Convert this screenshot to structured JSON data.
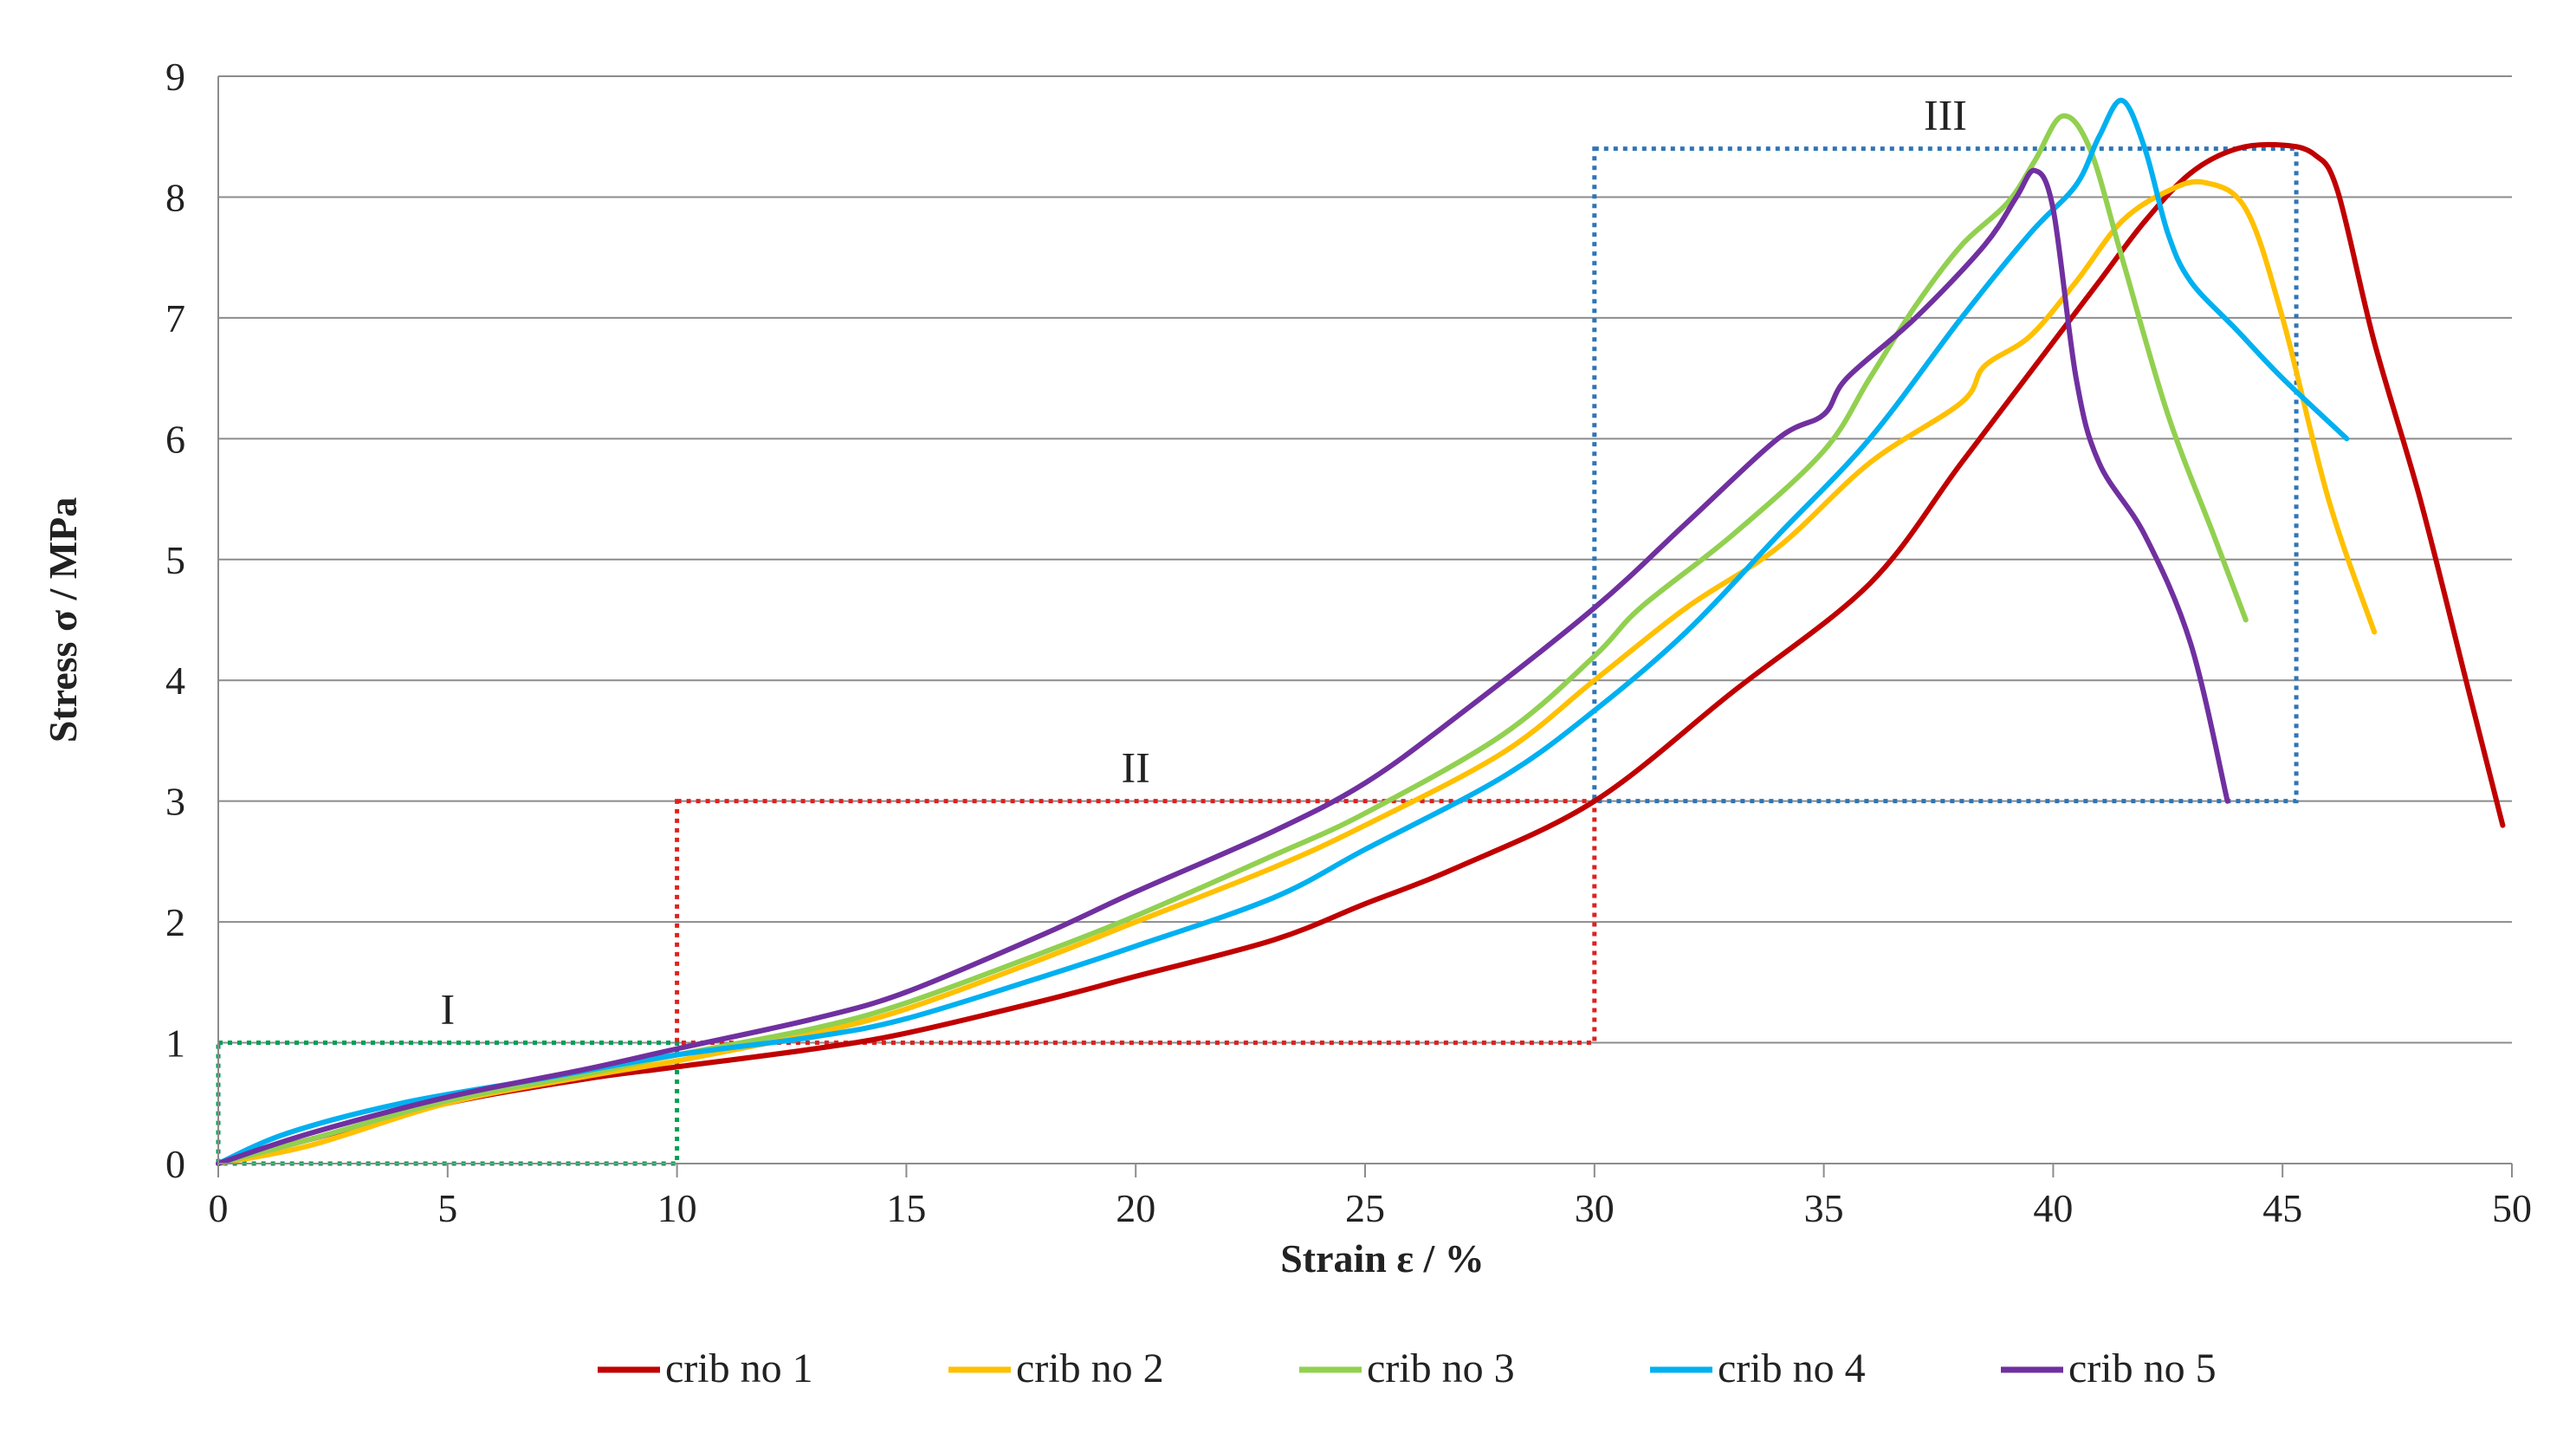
{
  "chart_data": {
    "type": "line",
    "title": "",
    "xlabel": "Strain ε / %",
    "ylabel": "Stress σ / MPa",
    "xlim": [
      0,
      50
    ],
    "ylim": [
      0,
      9
    ],
    "xticks": [
      0,
      5,
      10,
      15,
      20,
      25,
      30,
      35,
      40,
      45,
      50
    ],
    "yticks": [
      0,
      1,
      2,
      3,
      4,
      5,
      6,
      7,
      8,
      9
    ],
    "grid": "horizontal",
    "legend_position": "bottom",
    "series": [
      {
        "name": "crib no 1",
        "color": "#C00000",
        "points": [
          [
            0,
            0
          ],
          [
            2,
            0.2
          ],
          [
            5,
            0.5
          ],
          [
            8,
            0.7
          ],
          [
            10,
            0.8
          ],
          [
            13,
            0.95
          ],
          [
            15,
            1.08
          ],
          [
            18,
            1.35
          ],
          [
            20,
            1.55
          ],
          [
            23,
            1.85
          ],
          [
            25,
            2.15
          ],
          [
            27,
            2.45
          ],
          [
            30,
            3.0
          ],
          [
            33,
            3.9
          ],
          [
            36,
            4.8
          ],
          [
            38,
            5.8
          ],
          [
            40,
            6.8
          ],
          [
            41,
            7.3
          ],
          [
            42,
            7.8
          ],
          [
            43,
            8.2
          ],
          [
            44,
            8.4
          ],
          [
            45,
            8.43
          ],
          [
            45.7,
            8.35
          ],
          [
            46.2,
            8.05
          ],
          [
            47,
            6.8
          ],
          [
            48,
            5.5
          ],
          [
            49,
            4.0
          ],
          [
            49.8,
            2.8
          ]
        ]
      },
      {
        "name": "crib no 2",
        "color": "#FFC000",
        "points": [
          [
            0,
            0
          ],
          [
            2,
            0.15
          ],
          [
            5,
            0.5
          ],
          [
            8,
            0.72
          ],
          [
            10,
            0.85
          ],
          [
            13,
            1.08
          ],
          [
            15,
            1.28
          ],
          [
            18,
            1.7
          ],
          [
            20,
            2.0
          ],
          [
            23,
            2.45
          ],
          [
            25,
            2.8
          ],
          [
            28,
            3.4
          ],
          [
            30,
            4.0
          ],
          [
            32,
            4.6
          ],
          [
            34,
            5.1
          ],
          [
            36,
            5.8
          ],
          [
            38,
            6.3
          ],
          [
            38.5,
            6.6
          ],
          [
            39.5,
            6.85
          ],
          [
            40.5,
            7.3
          ],
          [
            41.5,
            7.8
          ],
          [
            42.5,
            8.05
          ],
          [
            43.3,
            8.12
          ],
          [
            44.2,
            7.9
          ],
          [
            45,
            7.0
          ],
          [
            46,
            5.5
          ],
          [
            47,
            4.4
          ]
        ]
      },
      {
        "name": "crib no 3",
        "color": "#92D050",
        "points": [
          [
            0,
            0
          ],
          [
            2,
            0.2
          ],
          [
            5,
            0.52
          ],
          [
            8,
            0.74
          ],
          [
            10,
            0.9
          ],
          [
            13,
            1.12
          ],
          [
            15,
            1.33
          ],
          [
            18,
            1.75
          ],
          [
            20,
            2.05
          ],
          [
            23,
            2.55
          ],
          [
            25,
            2.9
          ],
          [
            28,
            3.55
          ],
          [
            30,
            4.2
          ],
          [
            31,
            4.6
          ],
          [
            33,
            5.2
          ],
          [
            35,
            5.9
          ],
          [
            36,
            6.5
          ],
          [
            37,
            7.1
          ],
          [
            38,
            7.6
          ],
          [
            39,
            7.95
          ],
          [
            39.6,
            8.3
          ],
          [
            40.2,
            8.67
          ],
          [
            40.8,
            8.4
          ],
          [
            41.5,
            7.5
          ],
          [
            42.5,
            6.2
          ],
          [
            43.5,
            5.2
          ],
          [
            44.2,
            4.5
          ]
        ]
      },
      {
        "name": "crib no 4",
        "color": "#00B0F0",
        "points": [
          [
            0,
            0
          ],
          [
            1.5,
            0.25
          ],
          [
            4,
            0.5
          ],
          [
            7,
            0.7
          ],
          [
            10,
            0.9
          ],
          [
            13,
            1.05
          ],
          [
            15,
            1.2
          ],
          [
            18,
            1.55
          ],
          [
            20,
            1.8
          ],
          [
            23,
            2.2
          ],
          [
            25,
            2.6
          ],
          [
            28,
            3.2
          ],
          [
            30,
            3.75
          ],
          [
            32,
            4.4
          ],
          [
            34,
            5.2
          ],
          [
            36,
            6.0
          ],
          [
            38,
            7.0
          ],
          [
            39.5,
            7.7
          ],
          [
            40.5,
            8.1
          ],
          [
            41,
            8.5
          ],
          [
            41.5,
            8.8
          ],
          [
            42,
            8.4
          ],
          [
            42.5,
            7.7
          ],
          [
            43,
            7.3
          ],
          [
            44,
            6.9
          ],
          [
            45,
            6.5
          ],
          [
            46.4,
            6.0
          ]
        ]
      },
      {
        "name": "crib no 5",
        "color": "#7030A0",
        "points": [
          [
            0,
            0
          ],
          [
            2,
            0.25
          ],
          [
            5,
            0.55
          ],
          [
            8,
            0.78
          ],
          [
            10,
            0.95
          ],
          [
            13,
            1.2
          ],
          [
            15,
            1.42
          ],
          [
            18,
            1.9
          ],
          [
            20,
            2.25
          ],
          [
            23,
            2.75
          ],
          [
            25,
            3.15
          ],
          [
            27,
            3.7
          ],
          [
            30,
            4.6
          ],
          [
            32,
            5.3
          ],
          [
            34,
            6.0
          ],
          [
            35,
            6.2
          ],
          [
            35.5,
            6.5
          ],
          [
            37,
            7.0
          ],
          [
            38.5,
            7.6
          ],
          [
            39.2,
            8.0
          ],
          [
            39.6,
            8.22
          ],
          [
            40,
            7.9
          ],
          [
            40.5,
            6.5
          ],
          [
            41,
            5.8
          ],
          [
            42,
            5.2
          ],
          [
            43,
            4.3
          ],
          [
            43.8,
            3.0
          ]
        ]
      }
    ],
    "regions": [
      {
        "label": "I",
        "x": [
          0,
          10
        ],
        "y": [
          0,
          1
        ],
        "color": "#00A050"
      },
      {
        "label": "II",
        "x": [
          10,
          30
        ],
        "y": [
          1,
          3
        ],
        "color": "#E02020"
      },
      {
        "label": "III",
        "x": [
          30,
          45.3
        ],
        "y": [
          3,
          8.4
        ],
        "color": "#2E75B6"
      }
    ]
  }
}
